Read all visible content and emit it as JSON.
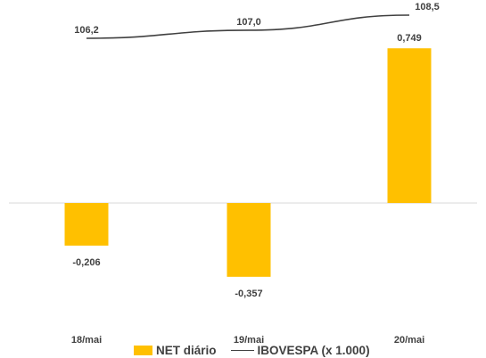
{
  "colors": {
    "bar": "#FFC000",
    "line": "#404040",
    "axis": "#D9D9D9",
    "text": "#404040"
  },
  "chart_data": {
    "type": "bar",
    "categories": [
      "18/mai",
      "19/mai",
      "20/mai"
    ],
    "series": [
      {
        "name": "NET diário",
        "type": "bar",
        "values": [
          -0.206,
          -0.357,
          0.749
        ],
        "labels": [
          "-0,206",
          "-0,357",
          "0,749"
        ]
      },
      {
        "name": "IBOVESPA (x 1.000)",
        "type": "line",
        "values": [
          106.2,
          107.0,
          108.5
        ],
        "labels": [
          "106,2",
          "107,0",
          "108,5"
        ]
      }
    ],
    "legend": "bottom"
  }
}
